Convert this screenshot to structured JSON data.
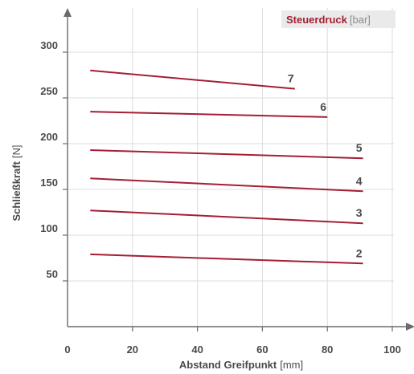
{
  "chart_data": {
    "type": "line",
    "xlabel": "Abstand Greifpunkt",
    "xunit": "[mm]",
    "ylabel": "Schließkraft",
    "yunit": "[N]",
    "xlim": [
      0,
      100
    ],
    "ylim": [
      0,
      300
    ],
    "xticks": [
      "0",
      "20",
      "40",
      "60",
      "80",
      "100"
    ],
    "yticks": [
      "50",
      "100",
      "150",
      "200",
      "250",
      "300"
    ],
    "grid": true,
    "legend_title": "Steuerdruck",
    "legend_unit": "[bar]",
    "legend_placement": "top-right",
    "line_color": "#a31f34",
    "series": [
      {
        "name": "7",
        "x": [
          7,
          70
        ],
        "y": [
          280,
          260
        ]
      },
      {
        "name": "6",
        "x": [
          7,
          80
        ],
        "y": [
          235,
          229
        ]
      },
      {
        "name": "5",
        "x": [
          7,
          91
        ],
        "y": [
          193,
          184
        ]
      },
      {
        "name": "4",
        "x": [
          7,
          91
        ],
        "y": [
          162,
          148
        ]
      },
      {
        "name": "3",
        "x": [
          7,
          91
        ],
        "y": [
          127,
          113
        ]
      },
      {
        "name": "2",
        "x": [
          7,
          91
        ],
        "y": [
          79,
          69
        ]
      }
    ]
  }
}
